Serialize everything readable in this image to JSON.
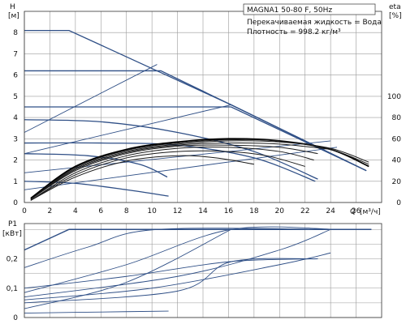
{
  "chart_data": [
    {
      "type": "line",
      "panel": "head-and-efficiency",
      "title_box": "MAGNA1 50-80 F, 50Hz",
      "annotations": [
        "Перекачиваемая жидкость = Вода",
        "Плотность = 998.2 кг/м³"
      ],
      "ylabel": "H",
      "yunit": "[м]",
      "y2label": "eta",
      "y2unit": "[%]",
      "xlabel": "Q",
      "xunit": "[м³/ч]",
      "xlim": [
        0,
        28
      ],
      "ylim": [
        0,
        9
      ],
      "y2lim": [
        0,
        180
      ],
      "x_ticks": [
        "0",
        "2",
        "4",
        "6",
        "8",
        "10",
        "12",
        "14",
        "16",
        "18",
        "20",
        "22",
        "24",
        "26"
      ],
      "y_ticks": [
        "0",
        "1",
        "2",
        "3",
        "4",
        "5",
        "6",
        "7",
        "8"
      ],
      "y2_ticks": [
        "0",
        "20",
        "40",
        "60",
        "80",
        "100"
      ],
      "grid": true,
      "series": [
        {
          "group": "head",
          "x": [
            0,
            3.5,
            16.2,
            26.8
          ],
          "y": [
            8.1,
            8.1,
            4.6,
            1.5
          ]
        },
        {
          "group": "head",
          "x": [
            0,
            10.7,
            16.2,
            26.8
          ],
          "y": [
            6.2,
            6.2,
            4.6,
            1.5
          ]
        },
        {
          "group": "head",
          "x": [
            0,
            16.2,
            26.8
          ],
          "y": [
            4.5,
            4.5,
            1.5
          ]
        },
        {
          "group": "head",
          "x": [
            0,
            6,
            12,
            18,
            23
          ],
          "y": [
            3.9,
            3.8,
            3.3,
            2.4,
            1.1
          ]
        },
        {
          "group": "head",
          "x": [
            0,
            6,
            12,
            18,
            22.8
          ],
          "y": [
            2.8,
            2.8,
            2.7,
            2.1,
            1.0
          ]
        },
        {
          "group": "head",
          "x": [
            0,
            5,
            9,
            11.2
          ],
          "y": [
            2.3,
            2.2,
            1.8,
            1.2
          ]
        },
        {
          "group": "head",
          "x": [
            0,
            4,
            8,
            11.3
          ],
          "y": [
            1.0,
            0.9,
            0.6,
            0.3
          ]
        },
        {
          "group": "system",
          "x": [
            0,
            10.4
          ],
          "y": [
            3.3,
            6.5
          ]
        },
        {
          "group": "system",
          "x": [
            0,
            16.2
          ],
          "y": [
            2.3,
            4.6
          ]
        },
        {
          "group": "system",
          "x": [
            0,
            24.0
          ],
          "y": [
            1.4,
            2.9
          ]
        },
        {
          "group": "system",
          "x": [
            0,
            24.5
          ],
          "y": [
            0.6,
            2.6
          ]
        },
        {
          "group": "eta",
          "x": [
            0.5,
            4,
            8,
            12,
            16,
            20,
            24,
            27
          ],
          "y": [
            4,
            34,
            50,
            57,
            60,
            58,
            50,
            34
          ]
        },
        {
          "group": "eta",
          "x": [
            0.5,
            4,
            8,
            12,
            16,
            20,
            24,
            27
          ],
          "y": [
            3,
            33,
            49,
            56,
            59,
            58,
            50,
            36
          ]
        },
        {
          "group": "eta",
          "x": [
            0.5,
            4,
            8,
            12,
            16,
            20,
            24,
            27
          ],
          "y": [
            3,
            32,
            48,
            55,
            58,
            57,
            51,
            38
          ]
        },
        {
          "group": "eta",
          "x": [
            0.5,
            4,
            8,
            12,
            16,
            20,
            24
          ],
          "y": [
            3,
            31,
            47,
            54,
            56,
            55,
            50
          ]
        },
        {
          "group": "eta",
          "x": [
            0.5,
            4,
            8,
            12,
            16,
            20,
            23
          ],
          "y": [
            3,
            30,
            46,
            53,
            54,
            52,
            46
          ]
        },
        {
          "group": "eta",
          "x": [
            0.5,
            4,
            8,
            12,
            16,
            20,
            22.7
          ],
          "y": [
            2,
            28,
            44,
            51,
            52,
            48,
            40
          ]
        },
        {
          "group": "eta",
          "x": [
            0.5,
            4,
            8,
            12,
            16,
            19,
            22
          ],
          "y": [
            2,
            26,
            42,
            48,
            48,
            44,
            34
          ]
        },
        {
          "group": "eta",
          "x": [
            0.5,
            4,
            8,
            12,
            15,
            18
          ],
          "y": [
            2,
            24,
            39,
            44,
            42,
            36
          ]
        }
      ]
    },
    {
      "type": "line",
      "panel": "power",
      "ylabel": "P1",
      "yunit": "[кВт]",
      "xlim": [
        0,
        28
      ],
      "ylim": [
        0,
        0.32
      ],
      "y_ticks": [
        "0",
        "0,1",
        "0,2"
      ],
      "grid": true,
      "series": [
        {
          "group": "power",
          "x": [
            0,
            3.5,
            24.5,
            27.2
          ],
          "y": [
            0.23,
            0.3,
            0.3,
            0.3
          ]
        },
        {
          "group": "power",
          "x": [
            0,
            5,
            10.4,
            24.5
          ],
          "y": [
            0.17,
            0.24,
            0.3,
            0.3
          ]
        },
        {
          "group": "power",
          "x": [
            0,
            8,
            16.2,
            24.5
          ],
          "y": [
            0.085,
            0.18,
            0.3,
            0.3
          ]
        },
        {
          "group": "power",
          "x": [
            0,
            12,
            20,
            24.0
          ],
          "y": [
            0.07,
            0.14,
            0.23,
            0.3
          ]
        },
        {
          "group": "power",
          "x": [
            0,
            8,
            16.2
          ],
          "y": [
            0.03,
            0.12,
            0.3
          ]
        },
        {
          "group": "power",
          "x": [
            0,
            8,
            16,
            23.0
          ],
          "y": [
            0.1,
            0.14,
            0.19,
            0.2
          ]
        },
        {
          "group": "power",
          "x": [
            0,
            12,
            16.2,
            23
          ],
          "y": [
            0.05,
            0.09,
            0.19,
            0.2
          ]
        },
        {
          "group": "power",
          "x": [
            0,
            10,
            20,
            24
          ],
          "y": [
            0.06,
            0.1,
            0.18,
            0.22
          ]
        },
        {
          "group": "power",
          "x": [
            0,
            8,
            11.3
          ],
          "y": [
            0.015,
            0.02,
            0.022
          ]
        }
      ]
    }
  ]
}
